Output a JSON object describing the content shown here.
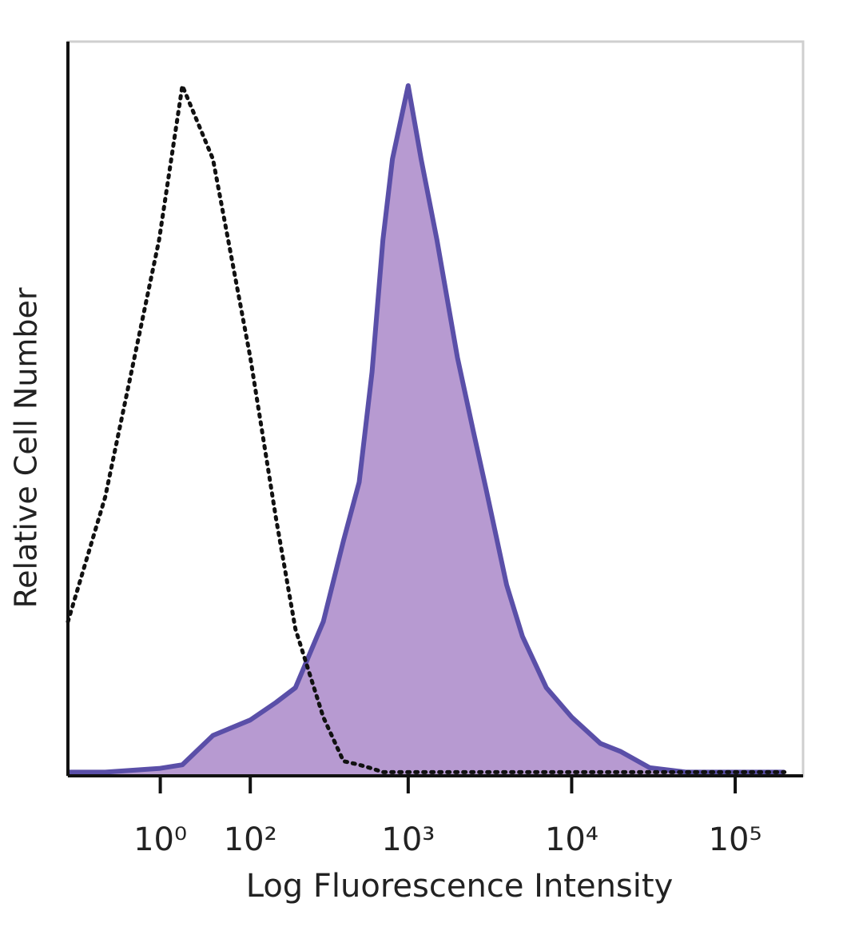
{
  "chart_data": {
    "type": "line",
    "xlabel": "Log Fluorescence Intensity",
    "ylabel": "Relative Cell Number",
    "x": [
      -100,
      -50,
      0,
      20,
      50,
      100,
      150,
      200,
      300,
      400,
      500,
      600,
      700,
      800,
      1000,
      1200,
      1500,
      2000,
      2500,
      3000,
      4000,
      5000,
      7000,
      10000,
      15000,
      20000,
      30000,
      50000,
      100000,
      200000
    ],
    "series": [
      {
        "color": "#5a4fa8",
        "fill": "#b79ad1",
        "style": "filled",
        "values": [
          0.5,
          0.5,
          1,
          1.5,
          5.5,
          7.6,
          10,
          12,
          21,
          32,
          40,
          55,
          73,
          84,
          94,
          84,
          73,
          57,
          47,
          39,
          26,
          19,
          12,
          8,
          4.4,
          3.3,
          1.1,
          0.5,
          0.5,
          0.5
        ]
      },
      {
        "color": "#111111",
        "style": "dotted",
        "values": [
          21,
          38,
          73,
          94,
          84,
          57,
          35,
          20,
          8,
          2,
          1.5,
          1,
          0.5,
          0.5,
          0.5,
          0.5,
          0.5,
          0.5,
          0.5,
          0.5,
          0.5,
          0.5,
          0.5,
          0.5,
          0.5,
          0.5,
          0.5,
          0.5,
          0.5,
          0.5
        ]
      }
    ],
    "xscale": "biexponential",
    "xlim": [
      -100,
      260000
    ],
    "xticks": [
      {
        "value": 1,
        "label": "10⁰"
      },
      {
        "value": 100,
        "label": "10²"
      },
      {
        "value": 1000,
        "label": "10³"
      },
      {
        "value": 10000,
        "label": "10⁴"
      },
      {
        "value": 100000,
        "label": "10⁵"
      }
    ],
    "ylim": [
      0,
      100
    ]
  }
}
